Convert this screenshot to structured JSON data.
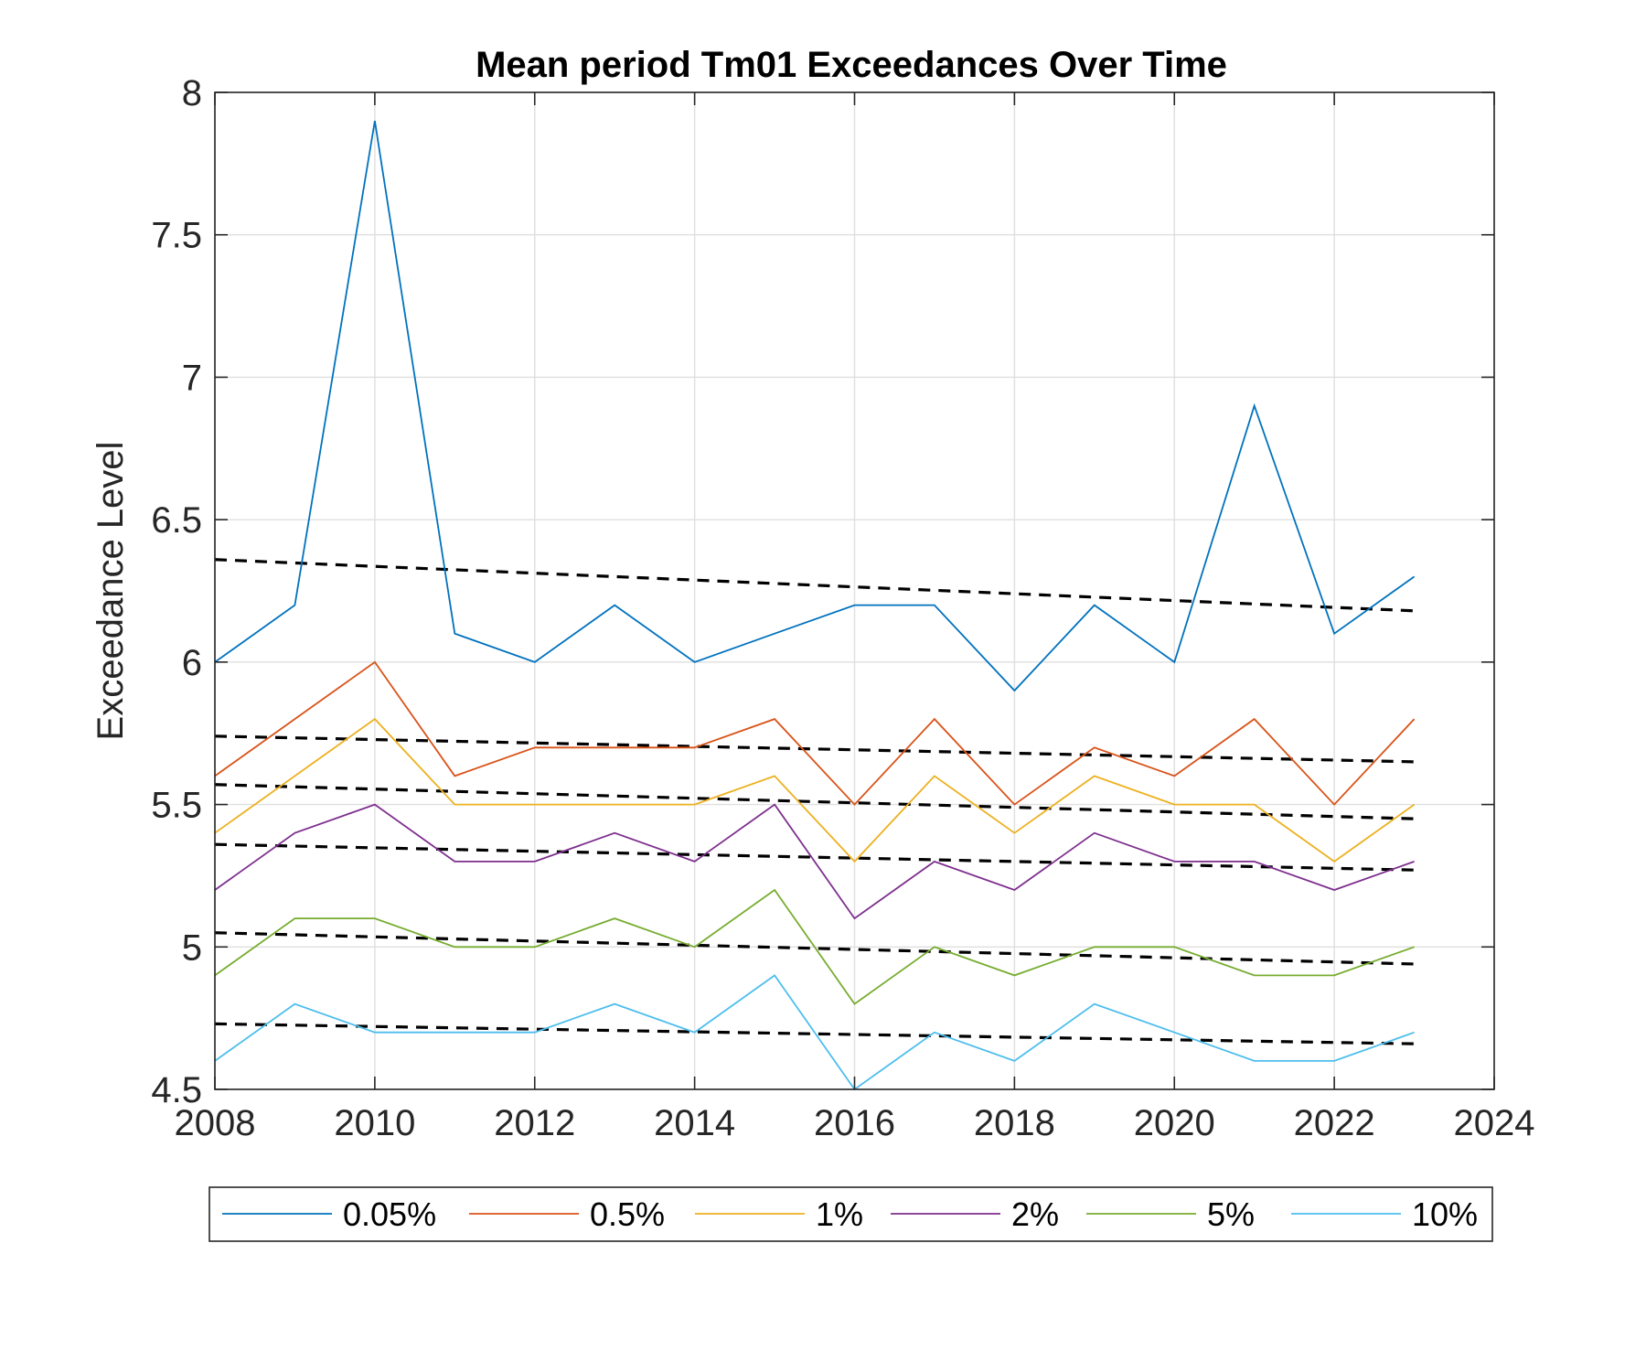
{
  "chart_data": {
    "type": "line",
    "title": "Mean period Tm01 Exceedances Over Time",
    "xlabel": "",
    "ylabel": "Exceedance Level",
    "xlim": [
      2008,
      2024
    ],
    "ylim": [
      4.5,
      8
    ],
    "grid": true,
    "legend_placement": "bottom-outside",
    "x_ticks": [
      "2008",
      "2010",
      "2012",
      "2014",
      "2016",
      "2018",
      "2020",
      "2022",
      "2024"
    ],
    "y_ticks": [
      "4.5",
      "5",
      "5.5",
      "6",
      "6.5",
      "7",
      "7.5",
      "8"
    ],
    "x": [
      2008,
      2009,
      2010,
      2011,
      2012,
      2013,
      2014,
      2015,
      2016,
      2017,
      2018,
      2019,
      2020,
      2021,
      2022,
      2023
    ],
    "series": [
      {
        "name": "0.05%",
        "color": "#0072BD",
        "values": [
          6.0,
          6.2,
          7.9,
          6.1,
          6.0,
          6.2,
          6.0,
          6.1,
          6.2,
          6.2,
          5.9,
          6.2,
          6.0,
          6.9,
          6.1,
          6.3
        ],
        "trend": [
          6.36,
          6.18
        ]
      },
      {
        "name": "0.5%",
        "color": "#D95319",
        "values": [
          5.6,
          5.8,
          6.0,
          5.6,
          5.7,
          5.7,
          5.7,
          5.8,
          5.5,
          5.8,
          5.5,
          5.7,
          5.6,
          5.8,
          5.5,
          5.8
        ],
        "trend": [
          5.74,
          5.65
        ]
      },
      {
        "name": "1%",
        "color": "#EDB120",
        "values": [
          5.4,
          5.6,
          5.8,
          5.5,
          5.5,
          5.5,
          5.5,
          5.6,
          5.3,
          5.6,
          5.4,
          5.6,
          5.5,
          5.5,
          5.3,
          5.5
        ],
        "trend": [
          5.57,
          5.45
        ]
      },
      {
        "name": "2%",
        "color": "#7E2F8E",
        "values": [
          5.2,
          5.4,
          5.5,
          5.3,
          5.3,
          5.4,
          5.3,
          5.5,
          5.1,
          5.3,
          5.2,
          5.4,
          5.3,
          5.3,
          5.2,
          5.3
        ],
        "trend": [
          5.36,
          5.27
        ]
      },
      {
        "name": "5%",
        "color": "#77AC30",
        "values": [
          4.9,
          5.1,
          5.1,
          5.0,
          5.0,
          5.1,
          5.0,
          5.2,
          4.8,
          5.0,
          4.9,
          5.0,
          5.0,
          4.9,
          4.9,
          5.0
        ],
        "trend": [
          5.05,
          4.94
        ]
      },
      {
        "name": "10%",
        "color": "#4DBEEE",
        "values": [
          4.6,
          4.8,
          4.7,
          4.7,
          4.7,
          4.8,
          4.7,
          4.9,
          4.5,
          4.7,
          4.6,
          4.8,
          4.7,
          4.6,
          4.6,
          4.7
        ],
        "trend": [
          4.73,
          4.66
        ]
      }
    ]
  }
}
